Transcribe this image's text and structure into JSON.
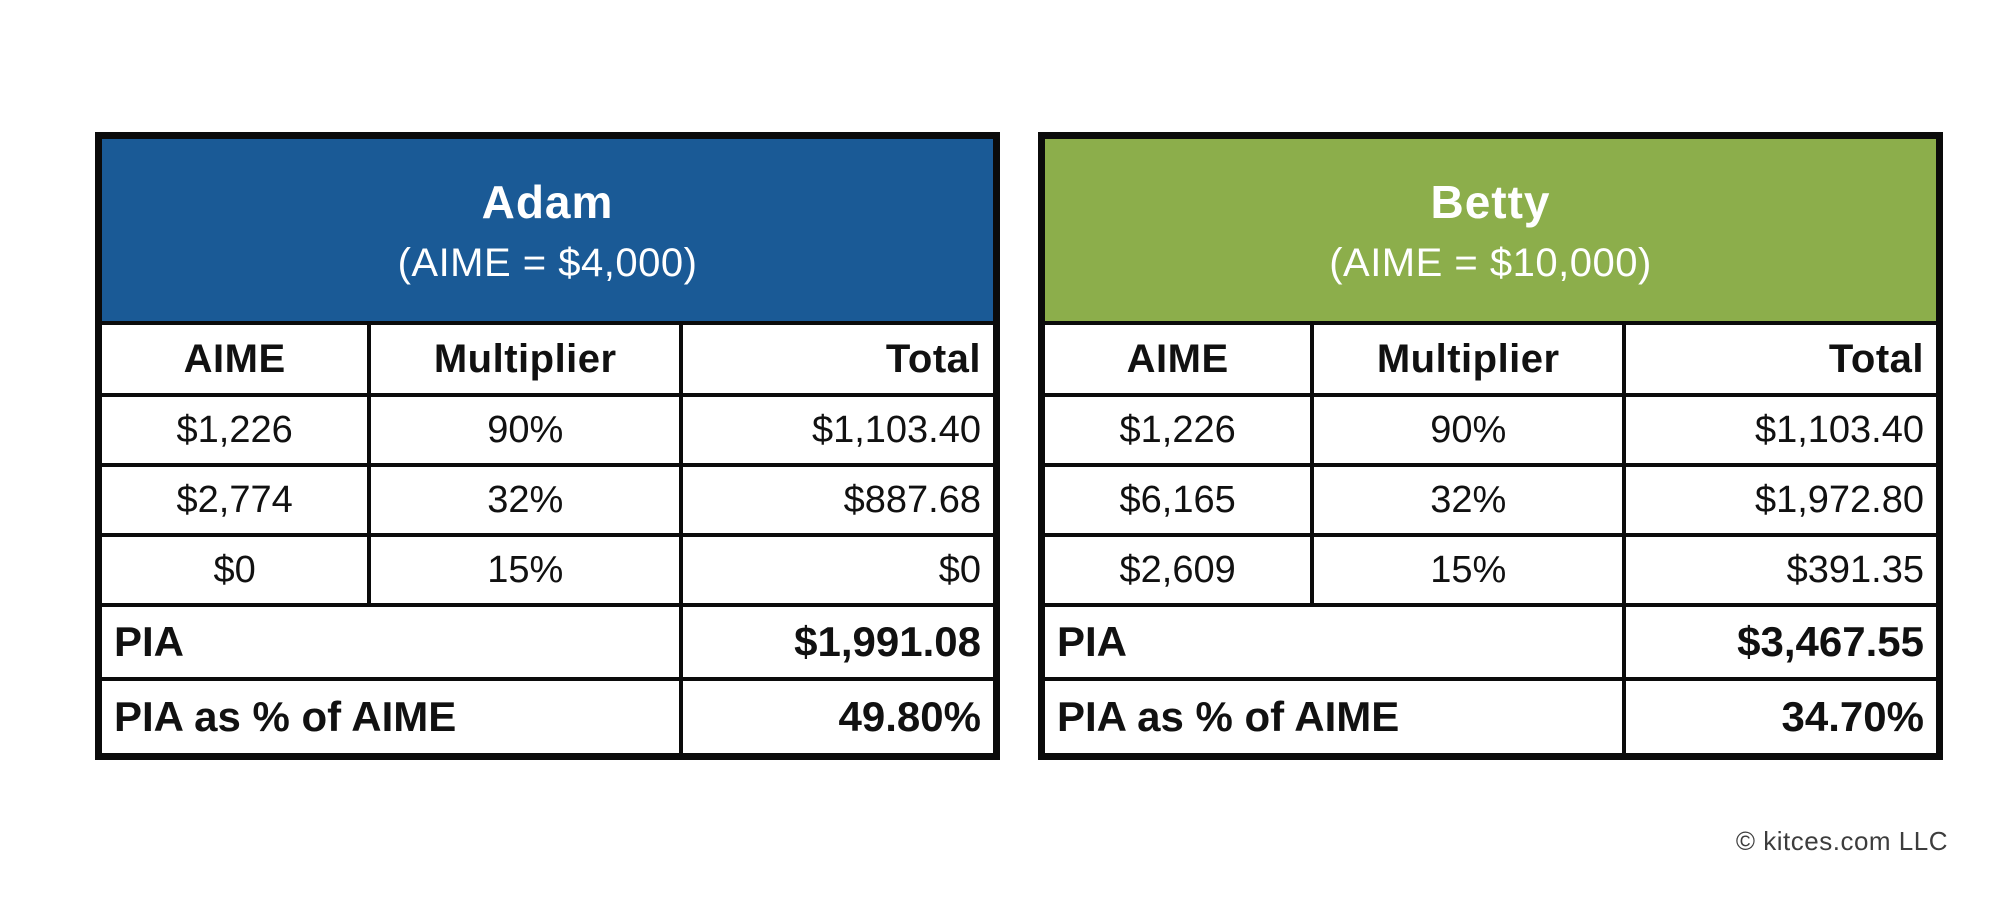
{
  "figure": {
    "credit": "© kitces.com LLC"
  },
  "tables": [
    {
      "name": "Adam",
      "subtitle": "(AIME = $4,000)",
      "header_color": "#1A5A96",
      "columns": [
        "AIME",
        "Multiplier",
        "Total"
      ],
      "rows": [
        [
          "$1,226",
          "90%",
          "$1,103.40"
        ],
        [
          "$2,774",
          "32%",
          "$887.68"
        ],
        [
          "$0",
          "15%",
          "$0"
        ]
      ],
      "pia": {
        "label": "PIA",
        "value": "$1,991.08"
      },
      "pia_pct": {
        "label": "PIA as % of AIME",
        "value": "49.80%"
      }
    },
    {
      "name": "Betty",
      "subtitle": "(AIME = $10,000)",
      "header_color": "#8CAE4B",
      "columns": [
        "AIME",
        "Multiplier",
        "Total"
      ],
      "rows": [
        [
          "$1,226",
          "90%",
          "$1,103.40"
        ],
        [
          "$6,165",
          "32%",
          "$1,972.80"
        ],
        [
          "$2,609",
          "15%",
          "$391.35"
        ]
      ],
      "pia": {
        "label": "PIA",
        "value": "$3,467.55"
      },
      "pia_pct": {
        "label": "PIA as % of AIME",
        "value": "34.70%"
      }
    }
  ],
  "chart_data": [
    {
      "type": "table",
      "title": "Adam (AIME = $4,000)",
      "columns": [
        "AIME",
        "Multiplier",
        "Total"
      ],
      "rows": [
        [
          "$1,226",
          "90%",
          "$1,103.40"
        ],
        [
          "$2,774",
          "32%",
          "$887.68"
        ],
        [
          "$0",
          "15%",
          "$0"
        ],
        [
          "PIA",
          "",
          "$1,991.08"
        ],
        [
          "PIA as % of AIME",
          "",
          "49.80%"
        ]
      ],
      "header_color": "#1A5A96"
    },
    {
      "type": "table",
      "title": "Betty (AIME = $10,000)",
      "columns": [
        "AIME",
        "Multiplier",
        "Total"
      ],
      "rows": [
        [
          "$1,226",
          "90%",
          "$1,103.40"
        ],
        [
          "$6,165",
          "32%",
          "$1,972.80"
        ],
        [
          "$2,609",
          "15%",
          "$391.35"
        ],
        [
          "PIA",
          "",
          "$3,467.55"
        ],
        [
          "PIA as % of AIME",
          "",
          "34.70%"
        ]
      ],
      "header_color": "#8CAE4B"
    }
  ]
}
